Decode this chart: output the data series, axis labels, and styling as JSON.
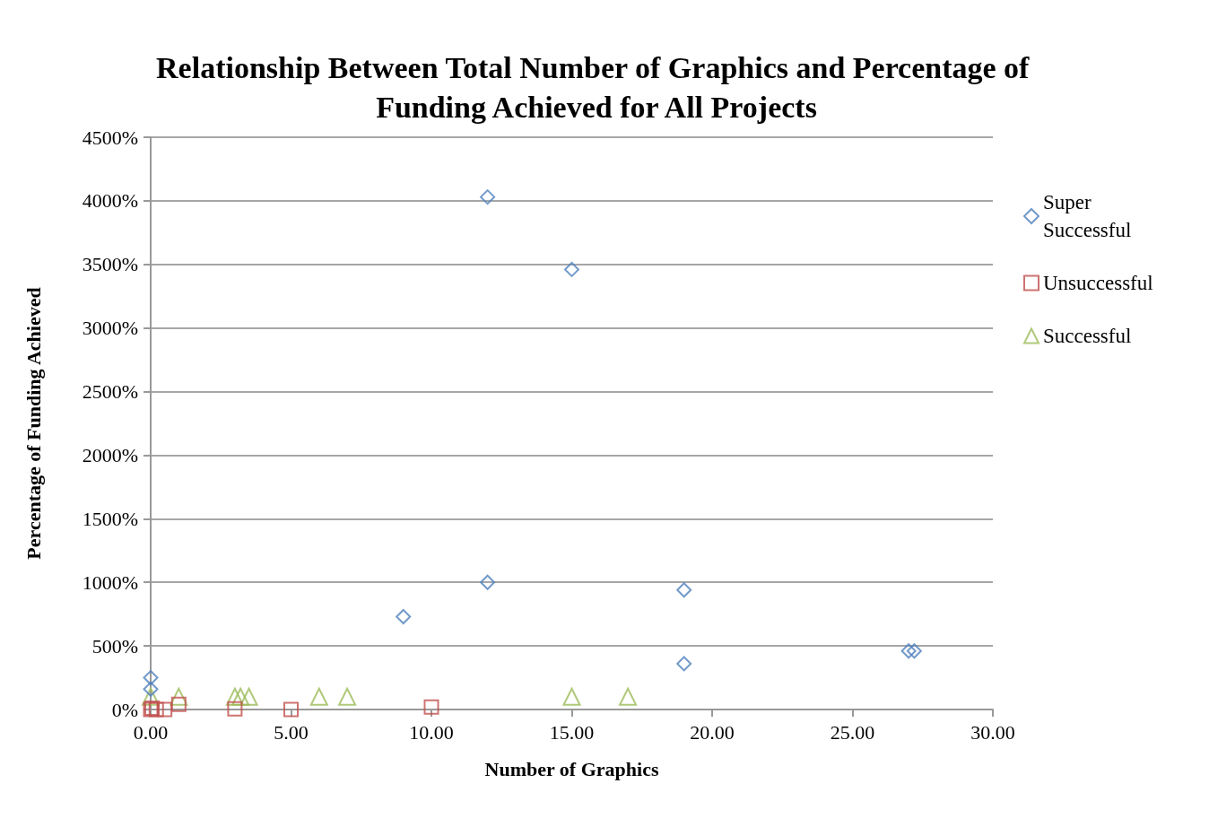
{
  "chart_data": {
    "type": "scatter",
    "title": "Relationship Between Total Number of Graphics and Percentage of Funding Achieved for All Projects",
    "xlabel": "Number of Graphics",
    "ylabel": "Percentage of Funding Achieved",
    "series": [
      {
        "name": "Super Successful",
        "color": "#4f81bd",
        "marker": "diamond",
        "x": [
          12,
          15,
          12,
          9,
          19,
          19,
          27,
          27.2,
          0,
          0
        ],
        "values": [
          4030,
          3460,
          1000,
          730,
          940,
          360,
          460,
          460,
          250,
          160
        ]
      },
      {
        "name": "Unsuccessful",
        "color": "#c0504d",
        "marker": "square",
        "x": [
          0,
          0.05,
          0.2,
          0.5,
          1,
          3,
          5,
          10
        ],
        "values": [
          0,
          10,
          0,
          0,
          40,
          5,
          0,
          20
        ]
      },
      {
        "name": "Successful",
        "color": "#9bbb59",
        "marker": "triangle",
        "x": [
          0,
          1,
          3,
          3.2,
          3.5,
          6,
          7,
          15,
          17
        ],
        "values": [
          100,
          100,
          100,
          100,
          100,
          100,
          100,
          100,
          100
        ]
      }
    ],
    "xlim": [
      0,
      30
    ],
    "ylim": [
      0,
      4500
    ],
    "xticks": [
      {
        "value": 0,
        "label": "0.00"
      },
      {
        "value": 5,
        "label": "5.00"
      },
      {
        "value": 10,
        "label": "10.00"
      },
      {
        "value": 15,
        "label": "15.00"
      },
      {
        "value": 20,
        "label": "20.00"
      },
      {
        "value": 25,
        "label": "25.00"
      },
      {
        "value": 30,
        "label": "30.00"
      }
    ],
    "yticks": [
      {
        "value": 0,
        "label": "0%"
      },
      {
        "value": 500,
        "label": "500%"
      },
      {
        "value": 1000,
        "label": "1000%"
      },
      {
        "value": 1500,
        "label": "1500%"
      },
      {
        "value": 2000,
        "label": "2000%"
      },
      {
        "value": 2500,
        "label": "2500%"
      },
      {
        "value": 3000,
        "label": "3000%"
      },
      {
        "value": 3500,
        "label": "3500%"
      },
      {
        "value": 4000,
        "label": "4000%"
      },
      {
        "value": 4500,
        "label": "4500%"
      }
    ],
    "grid": "y",
    "legend": "right"
  }
}
